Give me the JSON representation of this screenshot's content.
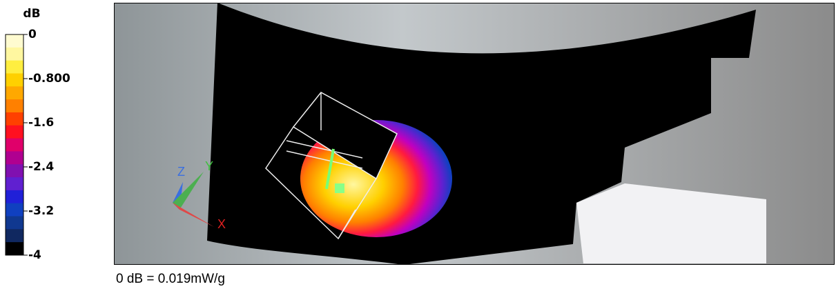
{
  "legend": {
    "unit": "dB",
    "ticks": [
      "0",
      "-0.800",
      "-1.6",
      "-2.4",
      "-3.2",
      "-4"
    ]
  },
  "view": {
    "axes": [
      "Z",
      "Y",
      "X"
    ]
  },
  "caption": "0 dB = 0.019mW/g"
}
